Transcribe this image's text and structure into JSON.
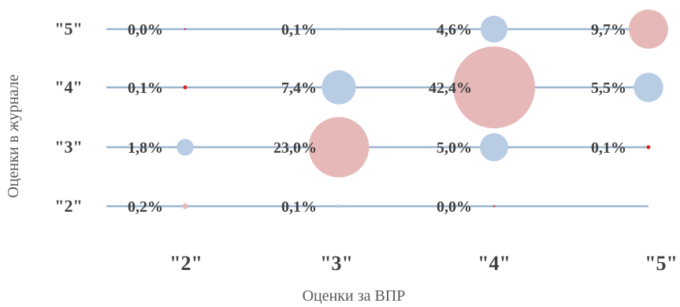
{
  "chart_data": {
    "type": "bubble",
    "title": "",
    "xlabel": "Оценки за ВПР",
    "ylabel": "Оценки в журнале",
    "x_categories": [
      "\"2\"",
      "\"3\"",
      "\"4\"",
      "\"5\""
    ],
    "y_categories": [
      "\"2\"",
      "\"3\"",
      "\"4\"",
      "\"5\""
    ],
    "grid": "horizontal lines per journal grade",
    "colors": {
      "line": "#9bb4cf",
      "blue": "#b8cce4",
      "pink": "#e6b8b7",
      "tiny": "#e0201b",
      "text": "#404040"
    },
    "points": [
      {
        "x": "\"2\"",
        "y": "\"5\"",
        "value": 0.0,
        "label": "0,0%"
      },
      {
        "x": "\"3\"",
        "y": "\"5\"",
        "value": 0.1,
        "label": "0,1%"
      },
      {
        "x": "\"4\"",
        "y": "\"5\"",
        "value": 4.6,
        "label": "4,6%"
      },
      {
        "x": "\"5\"",
        "y": "\"5\"",
        "value": 9.7,
        "label": "9,7%"
      },
      {
        "x": "\"2\"",
        "y": "\"4\"",
        "value": 0.1,
        "label": "0,1%"
      },
      {
        "x": "\"3\"",
        "y": "\"4\"",
        "value": 7.4,
        "label": "7,4%"
      },
      {
        "x": "\"4\"",
        "y": "\"4\"",
        "value": 42.4,
        "label": "42,4%"
      },
      {
        "x": "\"5\"",
        "y": "\"4\"",
        "value": 5.5,
        "label": "5,5%"
      },
      {
        "x": "\"2\"",
        "y": "\"3\"",
        "value": 1.8,
        "label": "1,8%"
      },
      {
        "x": "\"3\"",
        "y": "\"3\"",
        "value": 23.0,
        "label": "23,0%"
      },
      {
        "x": "\"4\"",
        "y": "\"3\"",
        "value": 5.0,
        "label": "5,0%"
      },
      {
        "x": "\"5\"",
        "y": "\"3\"",
        "value": 0.1,
        "label": "0,1%"
      },
      {
        "x": "\"2\"",
        "y": "\"2\"",
        "value": 0.2,
        "label": "0,2%"
      },
      {
        "x": "\"3\"",
        "y": "\"2\"",
        "value": 0.1,
        "label": "0,1%"
      },
      {
        "x": "\"4\"",
        "y": "\"2\"",
        "value": 0.0,
        "label": "0,0%"
      }
    ]
  }
}
